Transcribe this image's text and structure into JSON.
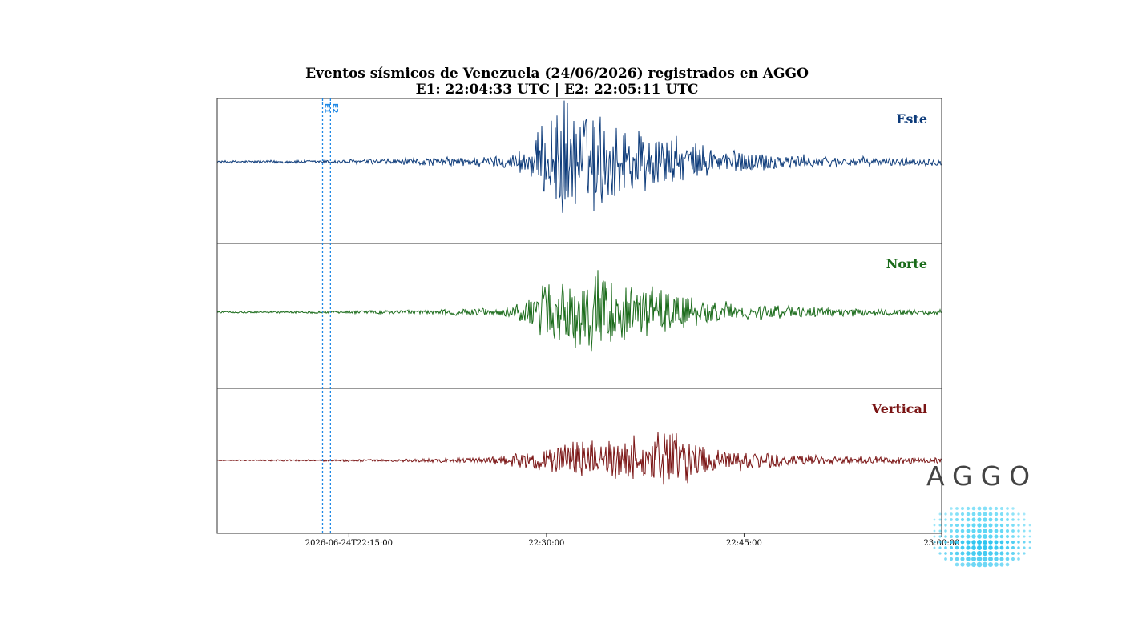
{
  "title": "Eventos sísmicos de Venezuela (24/06/2026) registrados en AGGO",
  "subtitle": "E1: 22:04:33 UTC | E2: 22:05:11 UTC",
  "logo_text": "AGGO",
  "chart_data": {
    "type": "line",
    "title": "Eventos sísmicos de Venezuela (24/06/2026) registrados en AGGO",
    "subtitle": "E1: 22:04:33 UTC | E2: 22:05:11 UTC",
    "x_ticks": [
      "2026-06-24T22:15:00",
      "22:30:00",
      "22:45:00",
      "23:00:00"
    ],
    "x_tick_minutes": [
      15,
      30,
      45,
      60
    ],
    "x_range_minutes_after_22": [
      5,
      60
    ],
    "grid": false,
    "markers": [
      {
        "label": "E1",
        "minute": 13.0,
        "color": "#1e88e5"
      },
      {
        "label": "E2",
        "minute": 13.6,
        "color": "#1e88e5"
      }
    ],
    "series": [
      {
        "name": "Este",
        "color": "#0d3b7a",
        "envelope_minutes": [
          [
            5,
            0.02
          ],
          [
            13,
            0.03
          ],
          [
            20,
            0.06
          ],
          [
            27,
            0.1
          ],
          [
            29,
            0.3
          ],
          [
            30,
            0.7
          ],
          [
            31,
            1.0
          ],
          [
            33,
            0.85
          ],
          [
            35,
            0.7
          ],
          [
            38,
            0.5
          ],
          [
            41,
            0.3
          ],
          [
            45,
            0.18
          ],
          [
            50,
            0.1
          ],
          [
            55,
            0.07
          ],
          [
            60,
            0.06
          ]
        ]
      },
      {
        "name": "Norte",
        "color": "#1a6b1a",
        "envelope_minutes": [
          [
            5,
            0.02
          ],
          [
            13,
            0.03
          ],
          [
            20,
            0.05
          ],
          [
            27,
            0.1
          ],
          [
            29,
            0.35
          ],
          [
            30,
            0.75
          ],
          [
            32,
            0.85
          ],
          [
            34,
            0.95
          ],
          [
            36,
            0.9
          ],
          [
            38,
            0.65
          ],
          [
            41,
            0.35
          ],
          [
            45,
            0.2
          ],
          [
            50,
            0.12
          ],
          [
            55,
            0.08
          ],
          [
            60,
            0.07
          ]
        ]
      },
      {
        "name": "Vertical",
        "color": "#7a1414",
        "envelope_minutes": [
          [
            5,
            0.01
          ],
          [
            13,
            0.03
          ],
          [
            20,
            0.04
          ],
          [
            25,
            0.08
          ],
          [
            28,
            0.2
          ],
          [
            31,
            0.4
          ],
          [
            33,
            0.55
          ],
          [
            35,
            0.5
          ],
          [
            37,
            0.65
          ],
          [
            39,
            0.75
          ],
          [
            40,
            0.85
          ],
          [
            41,
            0.5
          ],
          [
            44,
            0.3
          ],
          [
            48,
            0.18
          ],
          [
            52,
            0.12
          ],
          [
            56,
            0.1
          ],
          [
            60,
            0.08
          ]
        ]
      }
    ]
  }
}
